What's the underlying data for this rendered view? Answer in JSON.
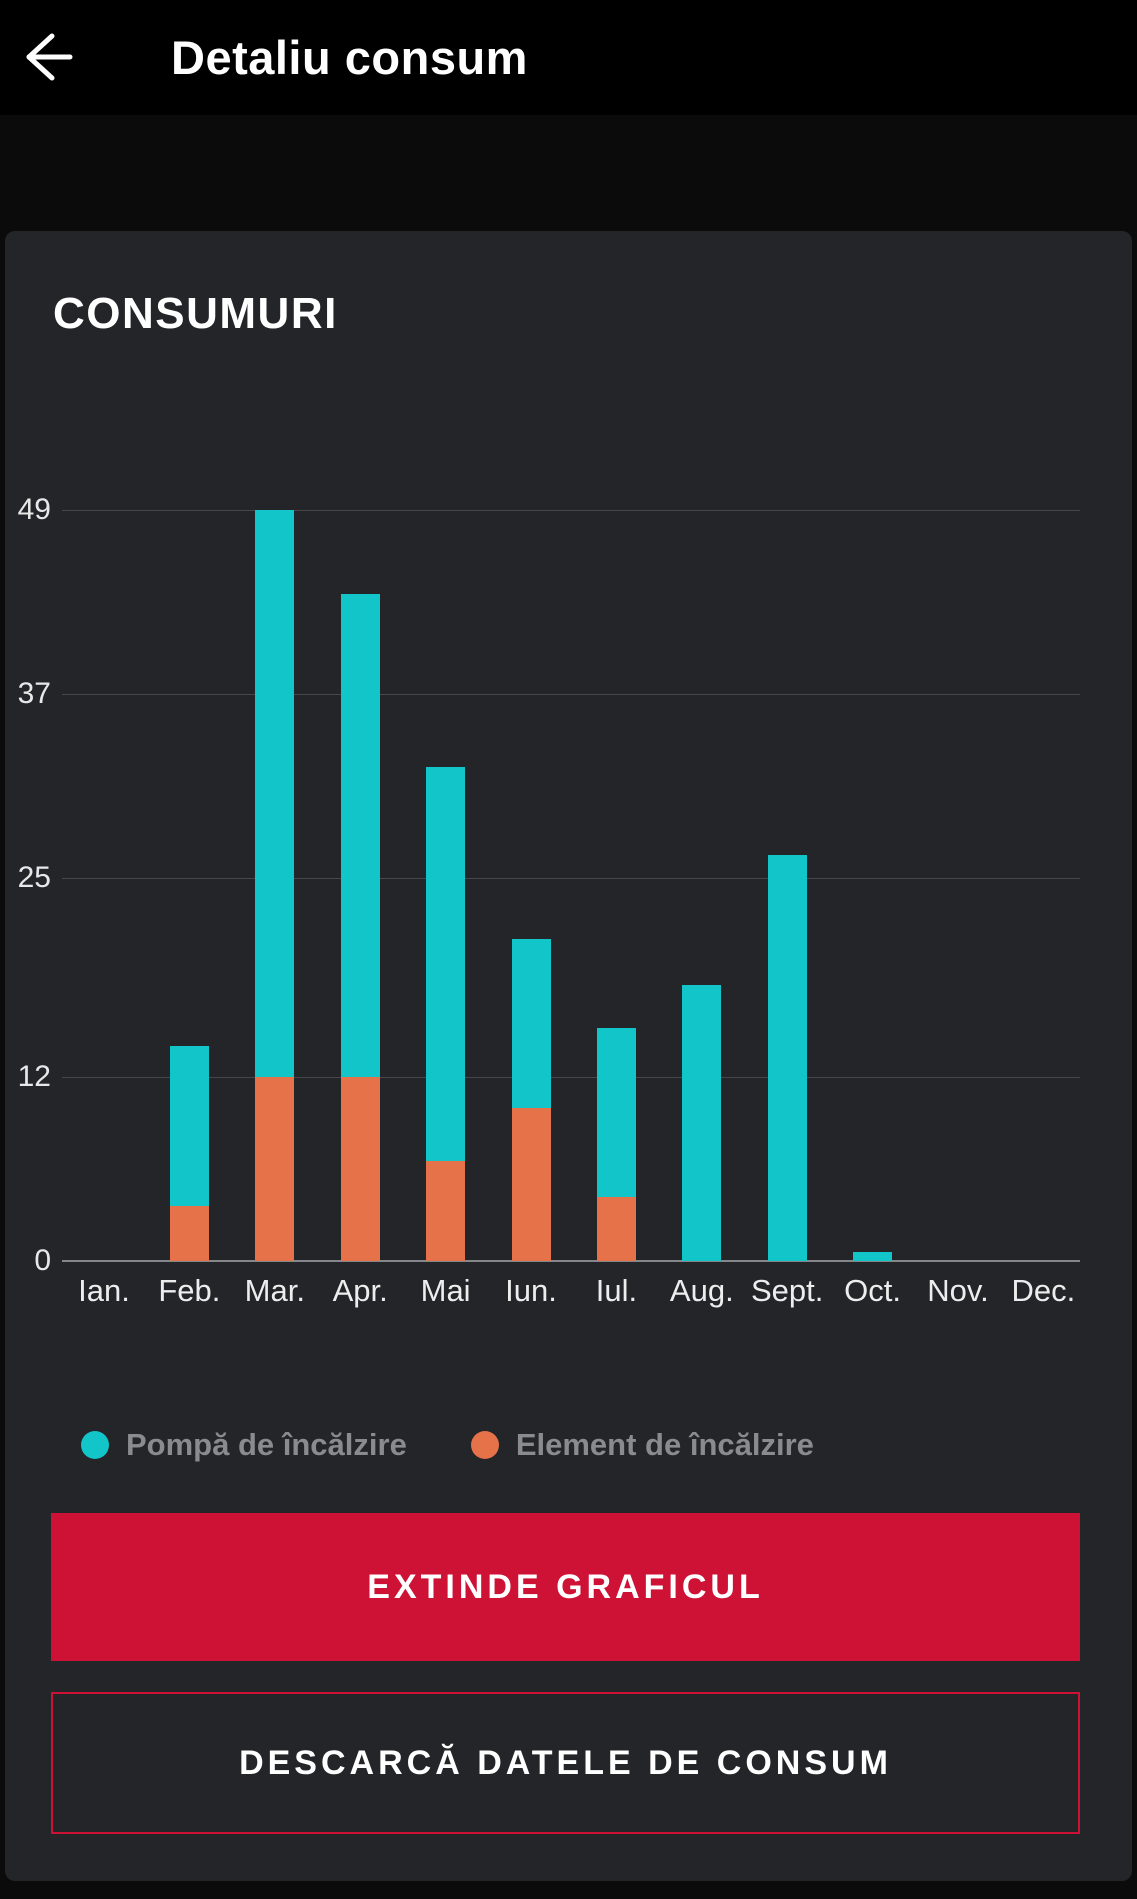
{
  "header": {
    "title": "Detaliu consum",
    "back_icon": "left-arrow"
  },
  "card": {
    "title": "CONSUMURI"
  },
  "chart_data": {
    "type": "bar",
    "stacked": true,
    "title": "CONSUMURI",
    "categories": [
      "Ian.",
      "Feb.",
      "Mar.",
      "Apr.",
      "Mai",
      "Iun.",
      "Iul.",
      "Aug.",
      "Sept.",
      "Oct.",
      "Nov.",
      "Dec."
    ],
    "series": [
      {
        "name": "Element de încălzire",
        "color": "#e57249",
        "stack_order": "bottom",
        "values": [
          0,
          3.6,
          12,
          12,
          6.5,
          10,
          4.2,
          0,
          0,
          0,
          0,
          0
        ]
      },
      {
        "name": "Pompă de încălzire",
        "color": "#12c5c8",
        "stack_order": "top",
        "values": [
          0,
          10.4,
          37,
          31.5,
          25.7,
          11,
          11,
          18,
          26.5,
          0.6,
          0,
          0
        ]
      }
    ],
    "totals": [
      0,
      14,
      49,
      43.5,
      32.2,
      21,
      15.2,
      18,
      26.5,
      0.6,
      0,
      0
    ],
    "yticks": [
      0,
      12,
      25,
      37,
      49
    ],
    "ylim": [
      0,
      49
    ],
    "xlabel": "",
    "ylabel": "",
    "grid": true,
    "legend_position": "bottom"
  },
  "legend": {
    "items": [
      {
        "label": "Pompă de încălzire",
        "color": "#12c5c8"
      },
      {
        "label": "Element de încălzire",
        "color": "#e57249"
      }
    ]
  },
  "buttons": {
    "expand_label": "EXTINDE GRAFICUL",
    "download_label": "DESCARCĂ DATELE DE CONSUM"
  },
  "colors": {
    "header_bg": "#000000",
    "page_bg": "#0b0b0c",
    "card_bg": "#242528",
    "accent_red": "#ce1235",
    "teal": "#12c5c8",
    "orange": "#e57249",
    "gridline": "#46474b",
    "axis_line": "#85868a",
    "legend_text": "#8a8b8f",
    "text": "#ffffff"
  }
}
